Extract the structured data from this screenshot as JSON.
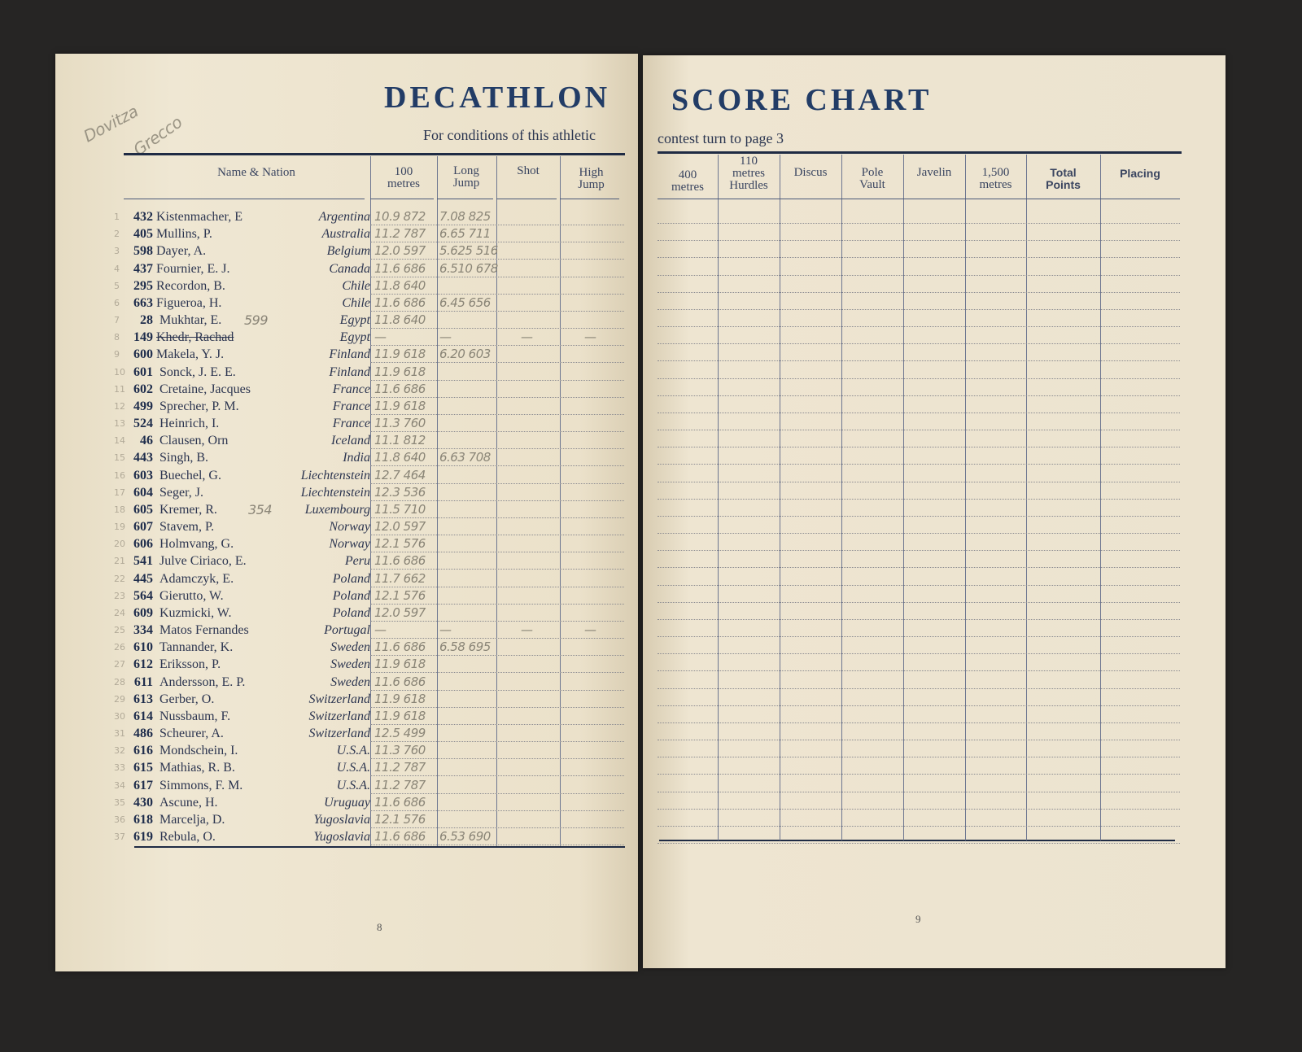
{
  "title_left": "DECATHLON",
  "title_right": "SCORE CHART",
  "subtitle_left": "For conditions of this athletic",
  "subtitle_right": "contest turn to page 3",
  "handwritten_note": [
    "Dovitza",
    "Grecco"
  ],
  "columns_left": {
    "name_nation": "Name & Nation",
    "m100": [
      "100",
      "metres"
    ],
    "long_jump": [
      "Long",
      "Jump"
    ],
    "shot": "Shot",
    "high_jump": [
      "High",
      "Jump"
    ]
  },
  "columns_right": {
    "m400": [
      "400",
      "metres"
    ],
    "hurdles": [
      "110",
      "metres",
      "Hurdles"
    ],
    "discus": "Discus",
    "pole_vault": [
      "Pole",
      "Vault"
    ],
    "javelin": "Javelin",
    "m1500": [
      "1,500",
      "metres"
    ],
    "total": [
      "Total",
      "Points"
    ],
    "placing": "Placing"
  },
  "page_numbers": {
    "left": "8",
    "right": "9"
  },
  "competitors": [
    {
      "idx": "1",
      "no": "432",
      "name": "Kistenmacher, E",
      "nation": "Argentina",
      "m100": "10.9 872",
      "lj": "7.08 825"
    },
    {
      "idx": "2",
      "no": "405",
      "name": "Mullins, P.",
      "nation": "Australia",
      "m100": "11.2 787",
      "lj": "6.65 711"
    },
    {
      "idx": "3",
      "no": "598",
      "name": "Dayer, A.",
      "nation": "Belgium",
      "m100": "12.0 597",
      "lj": "5.625 516"
    },
    {
      "idx": "4",
      "no": "437",
      "name": "Fournier, E. J.",
      "nation": "Canada",
      "m100": "11.6 686",
      "lj": "6.510 678"
    },
    {
      "idx": "5",
      "no": "295",
      "name": "Recordon, B.",
      "nation": "Chile",
      "m100": "11.8 640",
      "lj": ""
    },
    {
      "idx": "6",
      "no": "663",
      "name": "Figueroa, H.",
      "nation": "Chile",
      "m100": "11.6 686",
      "lj": "6.45 656"
    },
    {
      "idx": "7",
      "no": "28",
      "name": "Mukhtar, E.",
      "note": "599",
      "nation": "Egypt",
      "m100": "11.8 640",
      "lj": ""
    },
    {
      "idx": "8",
      "no": "149",
      "name": "Khedr, Rachad",
      "struck": true,
      "nation": "Egypt",
      "m100": "—",
      "lj": "—",
      "shot": "—",
      "hj": "—"
    },
    {
      "idx": "9",
      "no": "600",
      "name": "Makela, Y. J.",
      "nation": "Finland",
      "m100": "11.9 618",
      "lj": "6.20 603"
    },
    {
      "idx": "10",
      "no": "601",
      "name": "Sonck, J. E. E.",
      "nation": "Finland",
      "m100": "11.9 618",
      "lj": ""
    },
    {
      "idx": "11",
      "no": "602",
      "name": "Cretaine, Jacques",
      "nation": "France",
      "m100": "11.6 686",
      "lj": ""
    },
    {
      "idx": "12",
      "no": "499",
      "name": "Sprecher, P. M.",
      "nation": "France",
      "m100": "11.9 618",
      "lj": ""
    },
    {
      "idx": "13",
      "no": "524",
      "name": "Heinrich, I.",
      "nation": "France",
      "m100": "11.3 760",
      "lj": ""
    },
    {
      "idx": "14",
      "no": "46",
      "name": "Clausen, Orn",
      "nation": "Iceland",
      "m100": "11.1 812",
      "lj": ""
    },
    {
      "idx": "15",
      "no": "443",
      "name": "Singh, B.",
      "nation": "India",
      "m100": "11.8 640",
      "lj": "6.63 708"
    },
    {
      "idx": "16",
      "no": "603",
      "name": "Buechel, G.",
      "nation": "Liechtenstein",
      "m100": "12.7 464",
      "lj": ""
    },
    {
      "idx": "17",
      "no": "604",
      "name": "Seger, J.",
      "nation": "Liechtenstein",
      "m100": "12.3 536",
      "lj": ""
    },
    {
      "idx": "18",
      "no": "605",
      "name": "Kremer, R.",
      "note": "354",
      "nation": "Luxembourg",
      "m100": "11.5 710",
      "lj": ""
    },
    {
      "idx": "19",
      "no": "607",
      "name": "Stavem, P.",
      "nation": "Norway",
      "m100": "12.0 597",
      "lj": ""
    },
    {
      "idx": "20",
      "no": "606",
      "name": "Holmvang, G.",
      "nation": "Norway",
      "m100": "12.1 576",
      "lj": ""
    },
    {
      "idx": "21",
      "no": "541",
      "name": "Julve Ciriaco, E.",
      "nation": "Peru",
      "m100": "11.6 686",
      "lj": ""
    },
    {
      "idx": "22",
      "no": "445",
      "name": "Adamczyk, E.",
      "nation": "Poland",
      "m100": "11.7 662",
      "lj": ""
    },
    {
      "idx": "23",
      "no": "564",
      "name": "Gierutto, W.",
      "nation": "Poland",
      "m100": "12.1 576",
      "lj": ""
    },
    {
      "idx": "24",
      "no": "609",
      "name": "Kuzmicki, W.",
      "nation": "Poland",
      "m100": "12.0 597",
      "lj": ""
    },
    {
      "idx": "25",
      "no": "334",
      "name": "Matos Fernandes",
      "nation": "Portugal",
      "m100": "—",
      "lj": "—",
      "shot": "—",
      "hj": "—"
    },
    {
      "idx": "26",
      "no": "610",
      "name": "Tannander, K.",
      "nation": "Sweden",
      "m100": "11.6 686",
      "lj": "6.58 695"
    },
    {
      "idx": "27",
      "no": "612",
      "name": "Eriksson, P.",
      "nation": "Sweden",
      "m100": "11.9 618",
      "lj": ""
    },
    {
      "idx": "28",
      "no": "611",
      "name": "Andersson, E. P.",
      "nation": "Sweden",
      "m100": "11.6 686",
      "lj": ""
    },
    {
      "idx": "29",
      "no": "613",
      "name": "Gerber, O.",
      "nation": "Switzerland",
      "m100": "11.9 618",
      "lj": ""
    },
    {
      "idx": "30",
      "no": "614",
      "name": "Nussbaum, F.",
      "nation": "Switzerland",
      "m100": "11.9 618",
      "lj": ""
    },
    {
      "idx": "31",
      "no": "486",
      "name": "Scheurer, A.",
      "nation": "Switzerland",
      "m100": "12.5 499",
      "lj": ""
    },
    {
      "idx": "32",
      "no": "616",
      "name": "Mondschein, I.",
      "nation": "U.S.A.",
      "m100": "11.3 760",
      "lj": ""
    },
    {
      "idx": "33",
      "no": "615",
      "name": "Mathias, R. B.",
      "nation": "U.S.A.",
      "m100": "11.2 787",
      "lj": ""
    },
    {
      "idx": "34",
      "no": "617",
      "name": "Simmons, F. M.",
      "nation": "U.S.A.",
      "m100": "11.2 787",
      "lj": ""
    },
    {
      "idx": "35",
      "no": "430",
      "name": "Ascune, H.",
      "nation": "Uruguay",
      "m100": "11.6 686",
      "lj": ""
    },
    {
      "idx": "36",
      "no": "618",
      "name": "Marcelja, D.",
      "nation": "Yugoslavia",
      "m100": "12.1 576",
      "lj": ""
    },
    {
      "idx": "37",
      "no": "619",
      "name": "Rebula, O.",
      "nation": "Yugoslavia",
      "m100": "11.6 686",
      "lj": "6.53 690"
    }
  ]
}
